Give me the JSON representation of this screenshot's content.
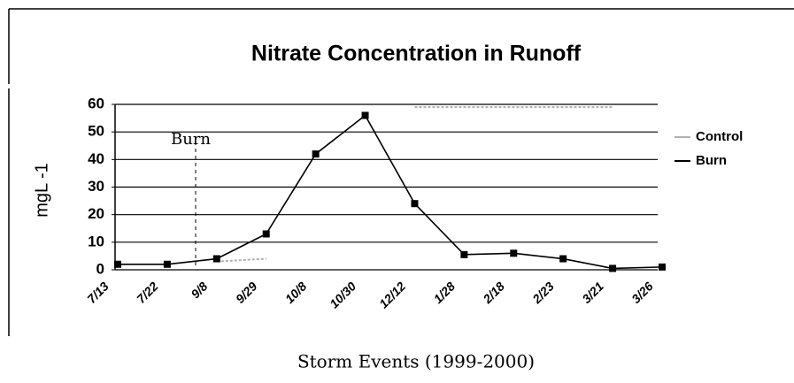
{
  "chart_data": {
    "type": "line",
    "title": "Nitrate Concentration in Runoff",
    "x_label": "Storm Events (1999-2000)",
    "y_label": "mgL -1",
    "annotation": "Burn",
    "categories": [
      "7/13",
      "7/22",
      "9/8",
      "9/29",
      "10/8",
      "10/30",
      "12/12",
      "1/28",
      "2/18",
      "2/23",
      "3/21",
      "3/26"
    ],
    "series": [
      {
        "name": "Control",
        "color": "#b0b0b0",
        "marker": false,
        "values": [
          null,
          null,
          3,
          4,
          null,
          null,
          59,
          59,
          59,
          59,
          59,
          null
        ]
      },
      {
        "name": "Burn",
        "color": "#000000",
        "marker": true,
        "values": [
          2,
          2,
          4,
          13,
          42,
          56,
          24,
          5.5,
          6,
          4,
          0.5,
          1
        ]
      }
    ],
    "ylim": [
      0,
      60
    ],
    "yticks": [
      0,
      10,
      20,
      30,
      40,
      50,
      60
    ],
    "grid": true,
    "legend": "right"
  }
}
